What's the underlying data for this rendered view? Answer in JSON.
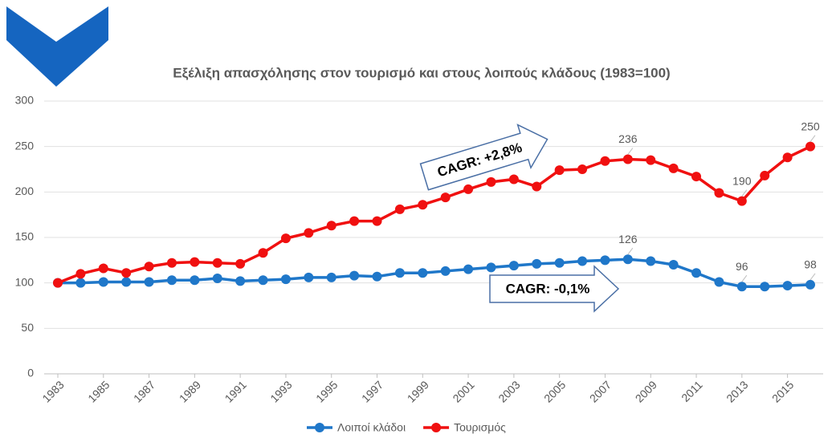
{
  "chart_data": {
    "type": "line",
    "title": "Εξέλιξη απασχόλησης στον τουρισμό και στους λοιπούς κλάδους (1983=100)",
    "x": [
      1983,
      1984,
      1985,
      1986,
      1987,
      1988,
      1989,
      1990,
      1991,
      1992,
      1993,
      1994,
      1995,
      1996,
      1997,
      1998,
      1999,
      2000,
      2001,
      2002,
      2003,
      2004,
      2005,
      2006,
      2007,
      2008,
      2009,
      2010,
      2011,
      2012,
      2013,
      2014,
      2015,
      2016
    ],
    "xlim": [
      1983,
      2016
    ],
    "xticks": [
      1983,
      1985,
      1987,
      1989,
      1991,
      1993,
      1995,
      1997,
      1999,
      2001,
      2003,
      2005,
      2007,
      2009,
      2011,
      2013,
      2015
    ],
    "ylim": [
      0,
      300
    ],
    "yticks": [
      0,
      50,
      100,
      150,
      200,
      250,
      300
    ],
    "grid": true,
    "legend": "bottom",
    "series": [
      {
        "name": "Λοιποί κλάδοι",
        "color": "#1f77c9",
        "values": [
          100,
          100,
          101,
          101,
          101,
          103,
          103,
          105,
          102,
          103,
          104,
          106,
          106,
          108,
          107,
          111,
          111,
          113,
          115,
          117,
          119,
          121,
          122,
          124,
          125,
          126,
          124,
          120,
          111,
          101,
          96,
          96,
          97,
          98
        ],
        "labeled_points": [
          25,
          30,
          33
        ]
      },
      {
        "name": "Τουρισμός",
        "color": "#f01010",
        "values": [
          100,
          110,
          116,
          111,
          118,
          122,
          123,
          122,
          121,
          133,
          149,
          155,
          163,
          168,
          168,
          181,
          186,
          194,
          203,
          211,
          214,
          206,
          224,
          225,
          234,
          236,
          235,
          226,
          217,
          199,
          190,
          218,
          238,
          250
        ],
        "labeled_points": [
          25,
          30,
          33
        ]
      }
    ],
    "annotations": [
      "CAGR: +2,8%",
      "CAGR: -0,1%"
    ]
  }
}
